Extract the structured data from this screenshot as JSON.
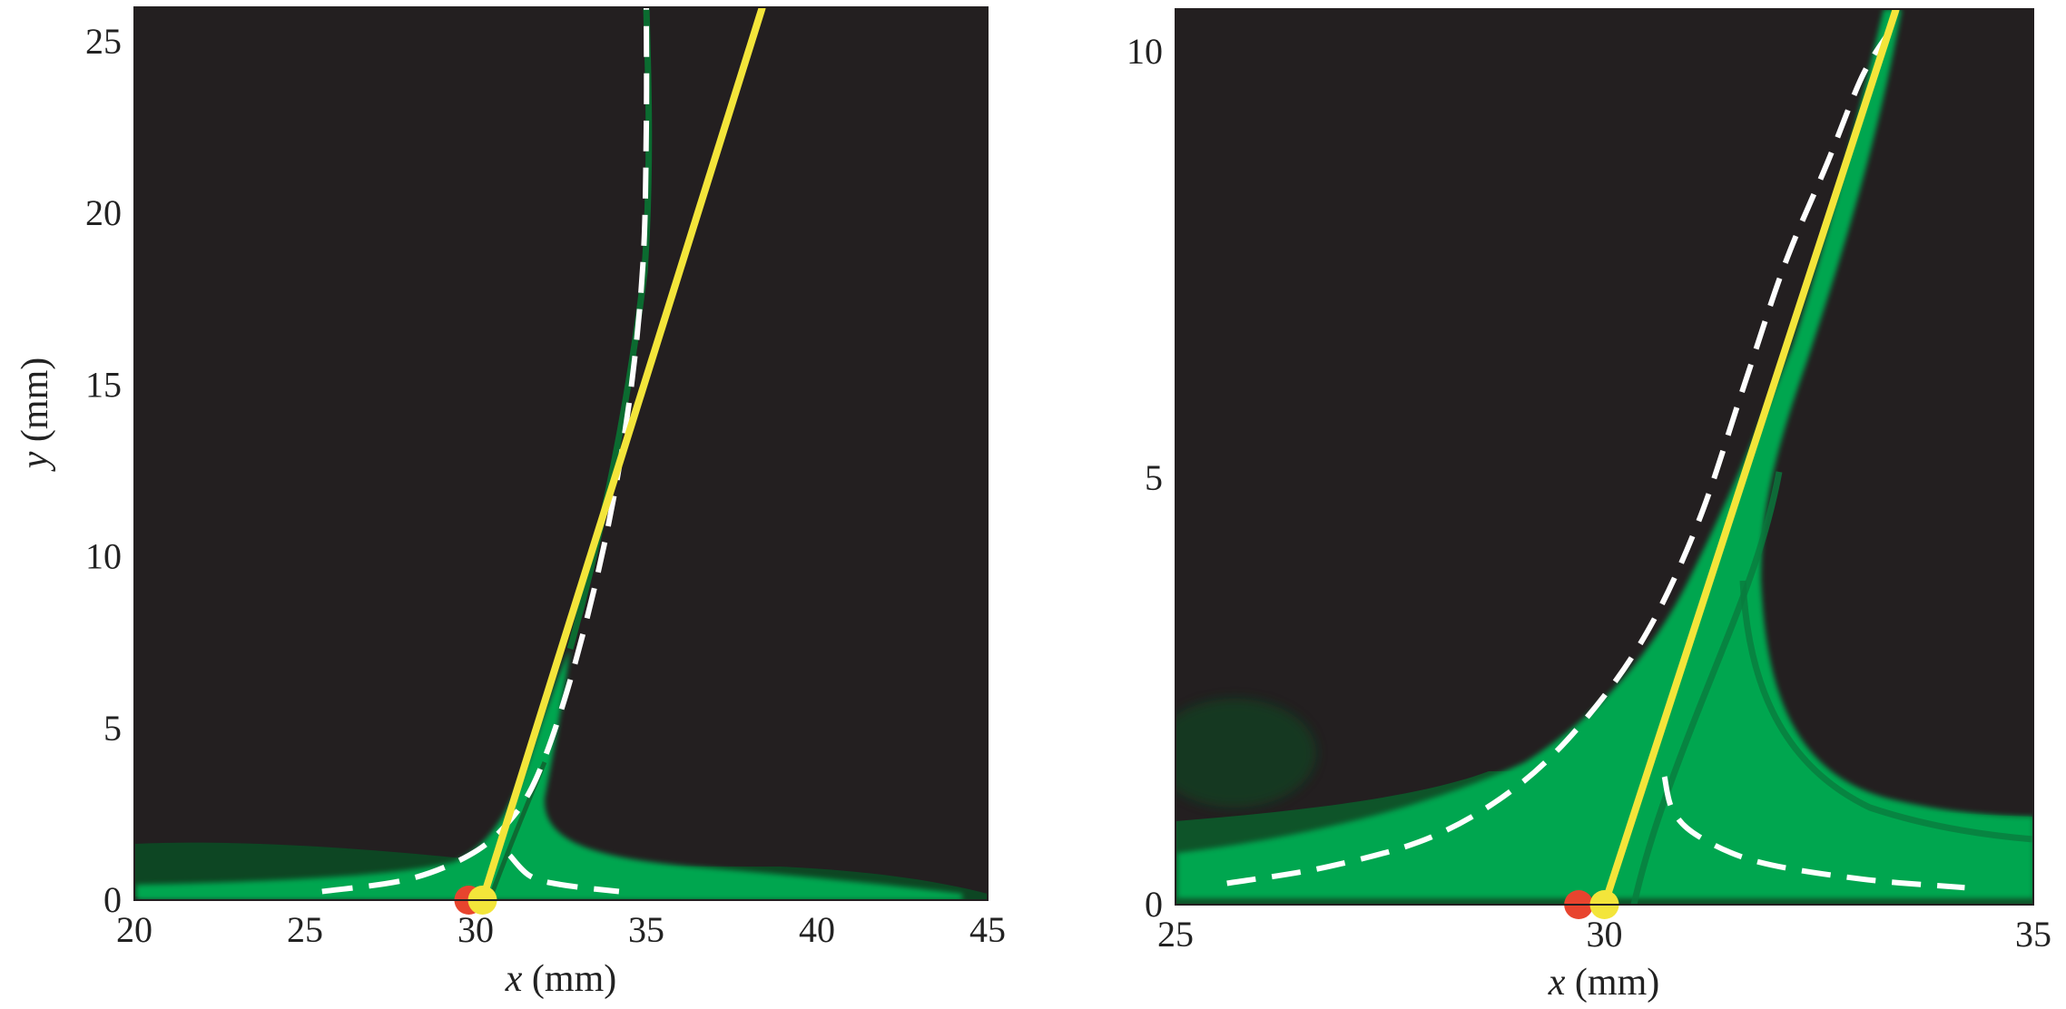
{
  "colors": {
    "background": "#231f20",
    "jet": "#00a650",
    "jet_dark": "#0b4a24",
    "fit_line": "#f3e53a",
    "model_dash": "#ffffff",
    "red_marker": "#e8442e",
    "yellow_marker": "#f3e53a"
  },
  "chart_data": [
    {
      "type": "line",
      "panel": "left",
      "xlabel_var": "x",
      "xlabel_unit": " (mm)",
      "ylabel_var": "y",
      "ylabel_unit": " (mm)",
      "xlim": [
        20,
        45
      ],
      "ylim": [
        0,
        26
      ],
      "xticks": [
        "20",
        "25",
        "30",
        "35",
        "40",
        "45"
      ],
      "yticks": [
        "0",
        "5",
        "10",
        "15",
        "20",
        "25"
      ],
      "series": [
        {
          "style": "solid-yellow",
          "x": [
            30.2,
            38.4
          ],
          "y": [
            0,
            26
          ]
        },
        {
          "style": "white-dash",
          "x": [
            25.5,
            28.0,
            29.8,
            30.9,
            31.8,
            32.8,
            33.8,
            34.5,
            34.9,
            35.0,
            35.0
          ],
          "y": [
            0.25,
            0.6,
            1.3,
            2.2,
            3.6,
            6.5,
            10.5,
            14.5,
            18.5,
            22.5,
            26.0
          ]
        },
        {
          "style": "white-dash",
          "x": [
            31.0,
            31.6,
            32.5,
            34.2
          ],
          "y": [
            1.3,
            0.7,
            0.45,
            0.25
          ]
        }
      ],
      "markers": [
        {
          "name": "red",
          "x": 29.8,
          "y": 0
        },
        {
          "name": "yellow",
          "x": 30.2,
          "y": 0
        }
      ]
    },
    {
      "type": "line",
      "panel": "right",
      "xlabel_var": "x",
      "xlabel_unit": " (mm)",
      "xlim": [
        25,
        35
      ],
      "ylim": [
        0,
        10.5
      ],
      "xticks": [
        "25",
        "30",
        "35"
      ],
      "yticks": [
        "0",
        "5",
        "10"
      ],
      "series": [
        {
          "style": "solid-yellow",
          "x": [
            30.0,
            33.4
          ],
          "y": [
            0,
            10.5
          ]
        },
        {
          "style": "white-dash",
          "x": [
            25.6,
            26.8,
            28.0,
            29.0,
            29.8,
            30.5,
            31.1,
            31.6,
            32.1,
            32.6,
            33.0,
            33.3
          ],
          "y": [
            0.25,
            0.45,
            0.8,
            1.4,
            2.2,
            3.2,
            4.5,
            6.0,
            7.5,
            8.7,
            9.7,
            10.2
          ]
        },
        {
          "style": "white-dash",
          "x": [
            30.7,
            30.8,
            31.1,
            31.8,
            33.0,
            34.2
          ],
          "y": [
            1.5,
            1.1,
            0.8,
            0.5,
            0.3,
            0.2
          ]
        }
      ],
      "markers": [
        {
          "name": "red",
          "x": 29.7,
          "y": 0
        },
        {
          "name": "yellow",
          "x": 30.0,
          "y": 0
        }
      ]
    }
  ]
}
